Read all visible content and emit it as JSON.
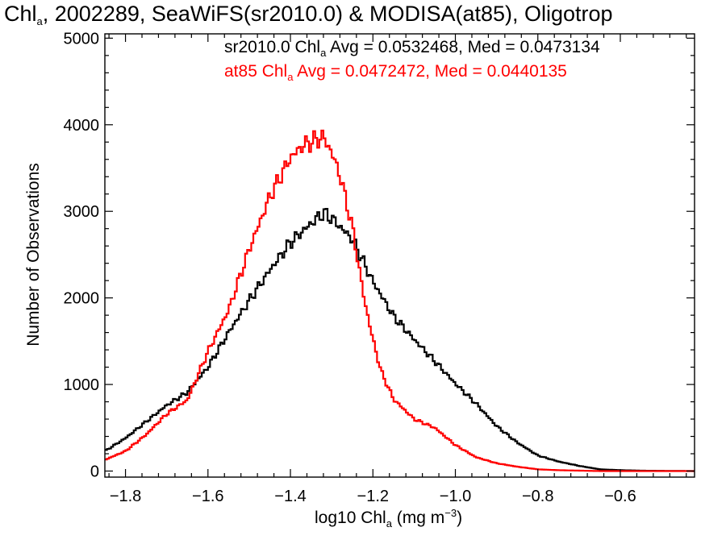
{
  "title": {
    "main": "Chl",
    "sub": "a",
    "rest": ", 2002289, SeaWiFS(sr2010.0) & MODISA(at85), Oligotrop"
  },
  "annotations": [
    {
      "pre": "sr2010.0 Chl",
      "sub": "a",
      "post": " Avg = 0.0532468, Med = 0.0473134",
      "color": "#000000"
    },
    {
      "pre": "at85 Chl",
      "sub": "a",
      "post": " Avg = 0.0472472, Med = 0.0440135",
      "color": "#ff0000"
    }
  ],
  "xlabel": {
    "pre": "log10 Chl",
    "sub": "a",
    "mid": " (mg m",
    "sup": "−3",
    "post": ")"
  },
  "ylabel": "Number of Observations",
  "chart_data": {
    "type": "line",
    "step": true,
    "xlim": [
      -1.85,
      -0.42
    ],
    "ylim": [
      -70,
      5050
    ],
    "xticks": [
      -1.8,
      -1.6,
      -1.4,
      -1.2,
      -1.0,
      -0.8,
      -0.6
    ],
    "xtick_labels": [
      "−1.8",
      "−1.6",
      "−1.4",
      "−1.2",
      "−1.0",
      "−0.8",
      "−0.6"
    ],
    "yticks": [
      0,
      1000,
      2000,
      3000,
      4000,
      5000
    ],
    "ytick_labels": [
      "0",
      "1000",
      "2000",
      "3000",
      "4000",
      "5000"
    ],
    "grid": false,
    "series": [
      {
        "name": "sr2010.0",
        "color": "#000000",
        "x": [
          -1.85,
          -1.8,
          -1.75,
          -1.7,
          -1.65,
          -1.6,
          -1.55,
          -1.5,
          -1.45,
          -1.4,
          -1.35,
          -1.32,
          -1.3,
          -1.25,
          -1.2,
          -1.15,
          -1.1,
          -1.05,
          -1.0,
          -0.95,
          -0.9,
          -0.85,
          -0.8,
          -0.75,
          -0.7,
          -0.65,
          -0.6,
          -0.55,
          -0.5,
          -0.42
        ],
        "y": [
          230,
          380,
          570,
          760,
          910,
          1200,
          1600,
          1970,
          2320,
          2640,
          2860,
          2980,
          2920,
          2680,
          2190,
          1790,
          1520,
          1270,
          1010,
          780,
          520,
          330,
          180,
          110,
          60,
          20,
          10,
          5,
          2,
          0
        ]
      },
      {
        "name": "at85",
        "color": "#ff0000",
        "x": [
          -1.85,
          -1.8,
          -1.75,
          -1.7,
          -1.65,
          -1.6,
          -1.55,
          -1.5,
          -1.45,
          -1.4,
          -1.37,
          -1.35,
          -1.32,
          -1.3,
          -1.28,
          -1.25,
          -1.22,
          -1.2,
          -1.18,
          -1.15,
          -1.1,
          -1.05,
          -1.0,
          -0.95,
          -0.9,
          -0.85,
          -0.8,
          -0.75,
          -0.7,
          -0.65,
          -0.6,
          -0.42
        ],
        "y": [
          130,
          230,
          420,
          660,
          820,
          1380,
          1860,
          2560,
          3170,
          3620,
          3760,
          3800,
          3860,
          3680,
          3420,
          2820,
          1960,
          1520,
          1150,
          830,
          600,
          500,
          300,
          160,
          90,
          50,
          20,
          10,
          5,
          0,
          0,
          0
        ]
      }
    ]
  }
}
